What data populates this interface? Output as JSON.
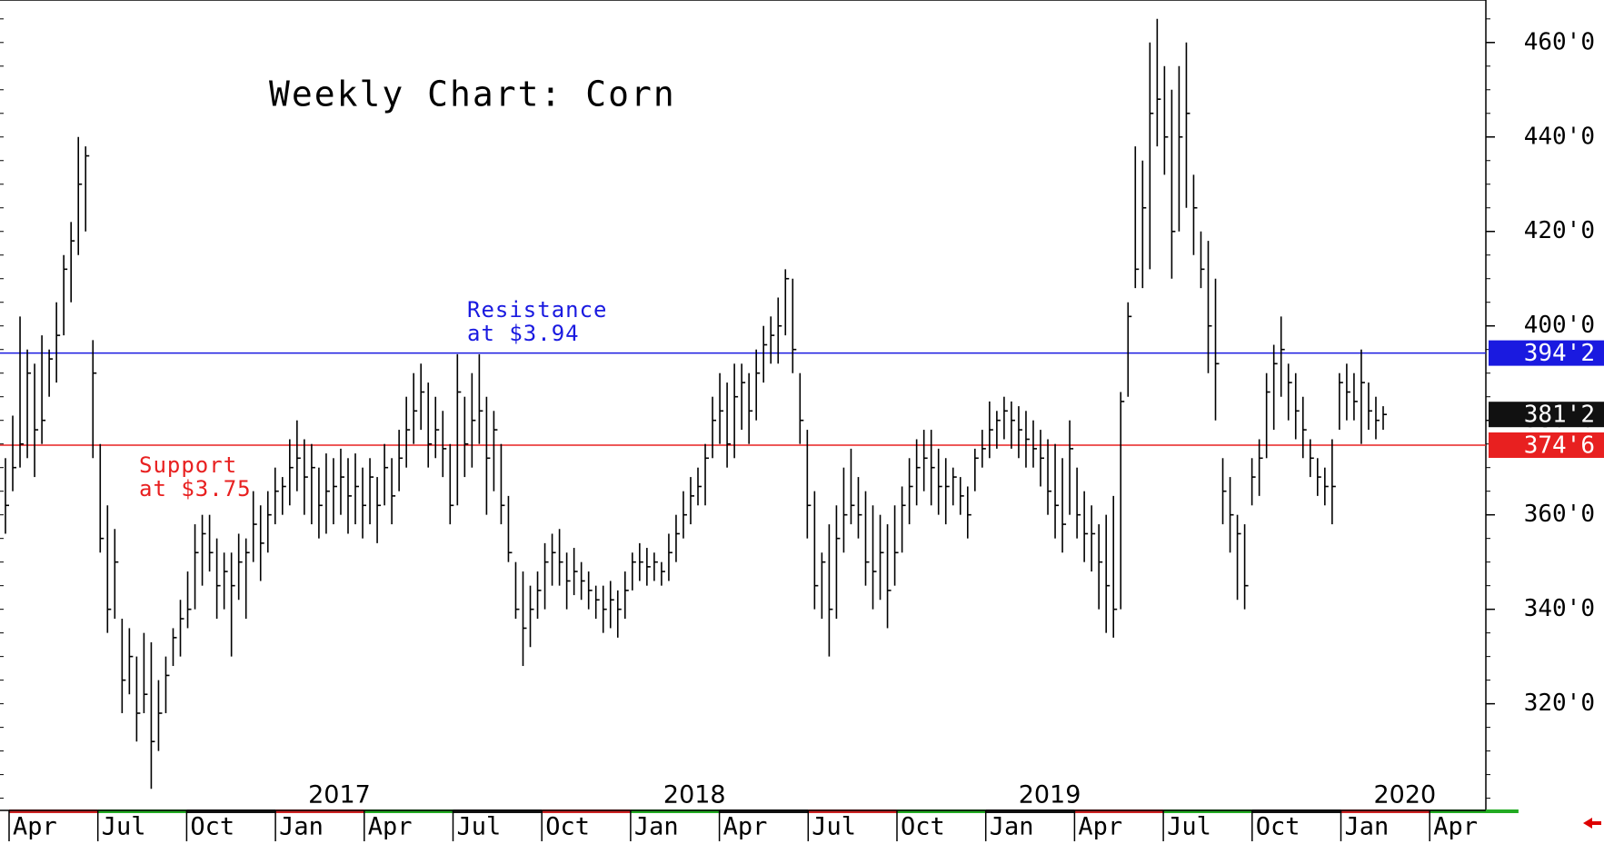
{
  "chart_data": {
    "type": "ohlc",
    "title": "Weekly Chart: Corn",
    "color": "#000000",
    "ylim": [
      298,
      469
    ],
    "yticks": [
      {
        "value": 320,
        "label": "320'0"
      },
      {
        "value": 340,
        "label": "340'0"
      },
      {
        "value": 360,
        "label": "360'0"
      },
      {
        "value": 380,
        "label": "380'0"
      },
      {
        "value": 400,
        "label": "400'0"
      },
      {
        "value": 420,
        "label": "420'0"
      },
      {
        "value": 440,
        "label": "440'0"
      },
      {
        "value": 460,
        "label": "460'0"
      }
    ],
    "months": [
      "Apr",
      "Jul",
      "Oct",
      "Jan",
      "Apr",
      "Jul",
      "Oct",
      "Jan",
      "Apr",
      "Jul",
      "Oct",
      "Jan",
      "Apr",
      "Jul",
      "Oct",
      "Jan",
      "Apr"
    ],
    "years": [
      2017,
      2018,
      2019,
      2020
    ],
    "levels": [
      {
        "lines": [
          "Resistance",
          "at $3.94"
        ],
        "value": 394.25,
        "label": "394'2",
        "color": "#1a1ae0"
      },
      {
        "lines": [
          "Support",
          "at $3.75"
        ],
        "value": 374.75,
        "label": "374'6",
        "color": "#e82020"
      }
    ],
    "last": {
      "value": 381.25,
      "label": "381'2",
      "color": "#111111"
    },
    "bars": [
      [
        372,
        356,
        362
      ],
      [
        381,
        365,
        370
      ],
      [
        402,
        370,
        375
      ],
      [
        395,
        372,
        390
      ],
      [
        392,
        368,
        378
      ],
      [
        398,
        375,
        380
      ],
      [
        395,
        385,
        393
      ],
      [
        405,
        388,
        398
      ],
      [
        415,
        398,
        412
      ],
      [
        422,
        405,
        418
      ],
      [
        440,
        415,
        430
      ],
      [
        438,
        420,
        436
      ],
      [
        397,
        372,
        390
      ],
      [
        375,
        352,
        355
      ],
      [
        362,
        335,
        340
      ],
      [
        357,
        338,
        350
      ],
      [
        338,
        318,
        325
      ],
      [
        336,
        322,
        330
      ],
      [
        330,
        312,
        318
      ],
      [
        335,
        318,
        322
      ],
      [
        333,
        302,
        312
      ],
      [
        325,
        310,
        318
      ],
      [
        330,
        318,
        326
      ],
      [
        336,
        328,
        334
      ],
      [
        342,
        330,
        338
      ],
      [
        348,
        336,
        340
      ],
      [
        358,
        340,
        352
      ],
      [
        360,
        345,
        356
      ],
      [
        360,
        348,
        352
      ],
      [
        355,
        338,
        345
      ],
      [
        352,
        340,
        348
      ],
      [
        352,
        330,
        345
      ],
      [
        356,
        342,
        350
      ],
      [
        355,
        338,
        352
      ],
      [
        365,
        350,
        358
      ],
      [
        362,
        346,
        354
      ],
      [
        365,
        352,
        360
      ],
      [
        370,
        358,
        365
      ],
      [
        368,
        360,
        366
      ],
      [
        376,
        362,
        370
      ],
      [
        380,
        365,
        372
      ],
      [
        376,
        360,
        368
      ],
      [
        375,
        358,
        370
      ],
      [
        370,
        355,
        362
      ],
      [
        373,
        356,
        365
      ],
      [
        372,
        358,
        366
      ],
      [
        374,
        360,
        368
      ],
      [
        372,
        356,
        364
      ],
      [
        373,
        358,
        366
      ],
      [
        370,
        355,
        362
      ],
      [
        372,
        358,
        368
      ],
      [
        368,
        354,
        362
      ],
      [
        375,
        362,
        370
      ],
      [
        372,
        358,
        364
      ],
      [
        378,
        365,
        372
      ],
      [
        385,
        370,
        378
      ],
      [
        390,
        375,
        382
      ],
      [
        392,
        378,
        386
      ],
      [
        388,
        370,
        375
      ],
      [
        385,
        372,
        378
      ],
      [
        382,
        368,
        374
      ],
      [
        375,
        358,
        362
      ],
      [
        394,
        362,
        386
      ],
      [
        385,
        368,
        375
      ],
      [
        390,
        370,
        380
      ],
      [
        394,
        375,
        382
      ],
      [
        385,
        360,
        372
      ],
      [
        382,
        365,
        378
      ],
      [
        375,
        358,
        362
      ],
      [
        364,
        350,
        352
      ],
      [
        350,
        338,
        340
      ],
      [
        348,
        328,
        336
      ],
      [
        345,
        332,
        340
      ],
      [
        348,
        338,
        344
      ],
      [
        354,
        340,
        350
      ],
      [
        356,
        345,
        352
      ],
      [
        357,
        345,
        350
      ],
      [
        352,
        340,
        346
      ],
      [
        353,
        343,
        348
      ],
      [
        350,
        342,
        346
      ],
      [
        348,
        340,
        344
      ],
      [
        345,
        338,
        342
      ],
      [
        345,
        335,
        340
      ],
      [
        346,
        336,
        342
      ],
      [
        344,
        334,
        340
      ],
      [
        348,
        338,
        344
      ],
      [
        352,
        344,
        350
      ],
      [
        354,
        346,
        350
      ],
      [
        353,
        345,
        349
      ],
      [
        352,
        346,
        350
      ],
      [
        350,
        345,
        348
      ],
      [
        356,
        346,
        352
      ],
      [
        360,
        350,
        356
      ],
      [
        365,
        355,
        360
      ],
      [
        368,
        358,
        364
      ],
      [
        370,
        362,
        366
      ],
      [
        375,
        362,
        372
      ],
      [
        385,
        372,
        380
      ],
      [
        390,
        375,
        382
      ],
      [
        388,
        370,
        375
      ],
      [
        392,
        372,
        385
      ],
      [
        392,
        378,
        388
      ],
      [
        390,
        375,
        382
      ],
      [
        395,
        380,
        390
      ],
      [
        400,
        388,
        396
      ],
      [
        402,
        392,
        398
      ],
      [
        406,
        392,
        400
      ],
      [
        412,
        398,
        410
      ],
      [
        410,
        390,
        395
      ],
      [
        390,
        375,
        380
      ],
      [
        378,
        355,
        362
      ],
      [
        365,
        340,
        345
      ],
      [
        352,
        338,
        350
      ],
      [
        358,
        330,
        340
      ],
      [
        362,
        338,
        355
      ],
      [
        370,
        352,
        360
      ],
      [
        374,
        358,
        362
      ],
      [
        368,
        355,
        360
      ],
      [
        365,
        345,
        350
      ],
      [
        362,
        340,
        348
      ],
      [
        360,
        342,
        352
      ],
      [
        358,
        336,
        344
      ],
      [
        362,
        345,
        352
      ],
      [
        366,
        352,
        362
      ],
      [
        372,
        358,
        366
      ],
      [
        376,
        362,
        370
      ],
      [
        378,
        365,
        372
      ],
      [
        378,
        362,
        370
      ],
      [
        374,
        360,
        366
      ],
      [
        372,
        358,
        366
      ],
      [
        370,
        362,
        368
      ],
      [
        368,
        360,
        364
      ],
      [
        366,
        355,
        360
      ],
      [
        374,
        365,
        372
      ],
      [
        378,
        370,
        374
      ],
      [
        384,
        372,
        378
      ],
      [
        382,
        374,
        380
      ],
      [
        385,
        376,
        382
      ],
      [
        384,
        374,
        380
      ],
      [
        383,
        372,
        378
      ],
      [
        382,
        370,
        376
      ],
      [
        380,
        370,
        374
      ],
      [
        378,
        366,
        372
      ],
      [
        376,
        360,
        365
      ],
      [
        375,
        355,
        362
      ],
      [
        372,
        352,
        358
      ],
      [
        380,
        360,
        374
      ],
      [
        370,
        355,
        360
      ],
      [
        365,
        350,
        356
      ],
      [
        362,
        348,
        356
      ],
      [
        358,
        340,
        350
      ],
      [
        360,
        335,
        345
      ],
      [
        364,
        334,
        340
      ],
      [
        386,
        340,
        384
      ],
      [
        405,
        385,
        402
      ],
      [
        438,
        408,
        412
      ],
      [
        435,
        408,
        425
      ],
      [
        460,
        412,
        445
      ],
      [
        465,
        438,
        448
      ],
      [
        455,
        432,
        440
      ],
      [
        450,
        410,
        420
      ],
      [
        455,
        420,
        440
      ],
      [
        460,
        425,
        445
      ],
      [
        432,
        415,
        425
      ],
      [
        420,
        408,
        412
      ],
      [
        418,
        390,
        400
      ],
      [
        410,
        380,
        392
      ],
      [
        372,
        358,
        365
      ],
      [
        368,
        352,
        360
      ],
      [
        360,
        342,
        356
      ],
      [
        358,
        340,
        345
      ],
      [
        372,
        362,
        368
      ],
      [
        376,
        364,
        372
      ],
      [
        390,
        372,
        386
      ],
      [
        396,
        378,
        392
      ],
      [
        402,
        385,
        395
      ],
      [
        392,
        380,
        388
      ],
      [
        390,
        376,
        382
      ],
      [
        385,
        372,
        378
      ],
      [
        376,
        368,
        372
      ],
      [
        372,
        364,
        368
      ],
      [
        370,
        362,
        366
      ],
      [
        376,
        358,
        366
      ],
      [
        390,
        378,
        388
      ],
      [
        392,
        380,
        386
      ],
      [
        390,
        380,
        384
      ],
      [
        395,
        375,
        388
      ],
      [
        388,
        378,
        382
      ],
      [
        385,
        376,
        380
      ],
      [
        383,
        378,
        381.25
      ]
    ]
  }
}
